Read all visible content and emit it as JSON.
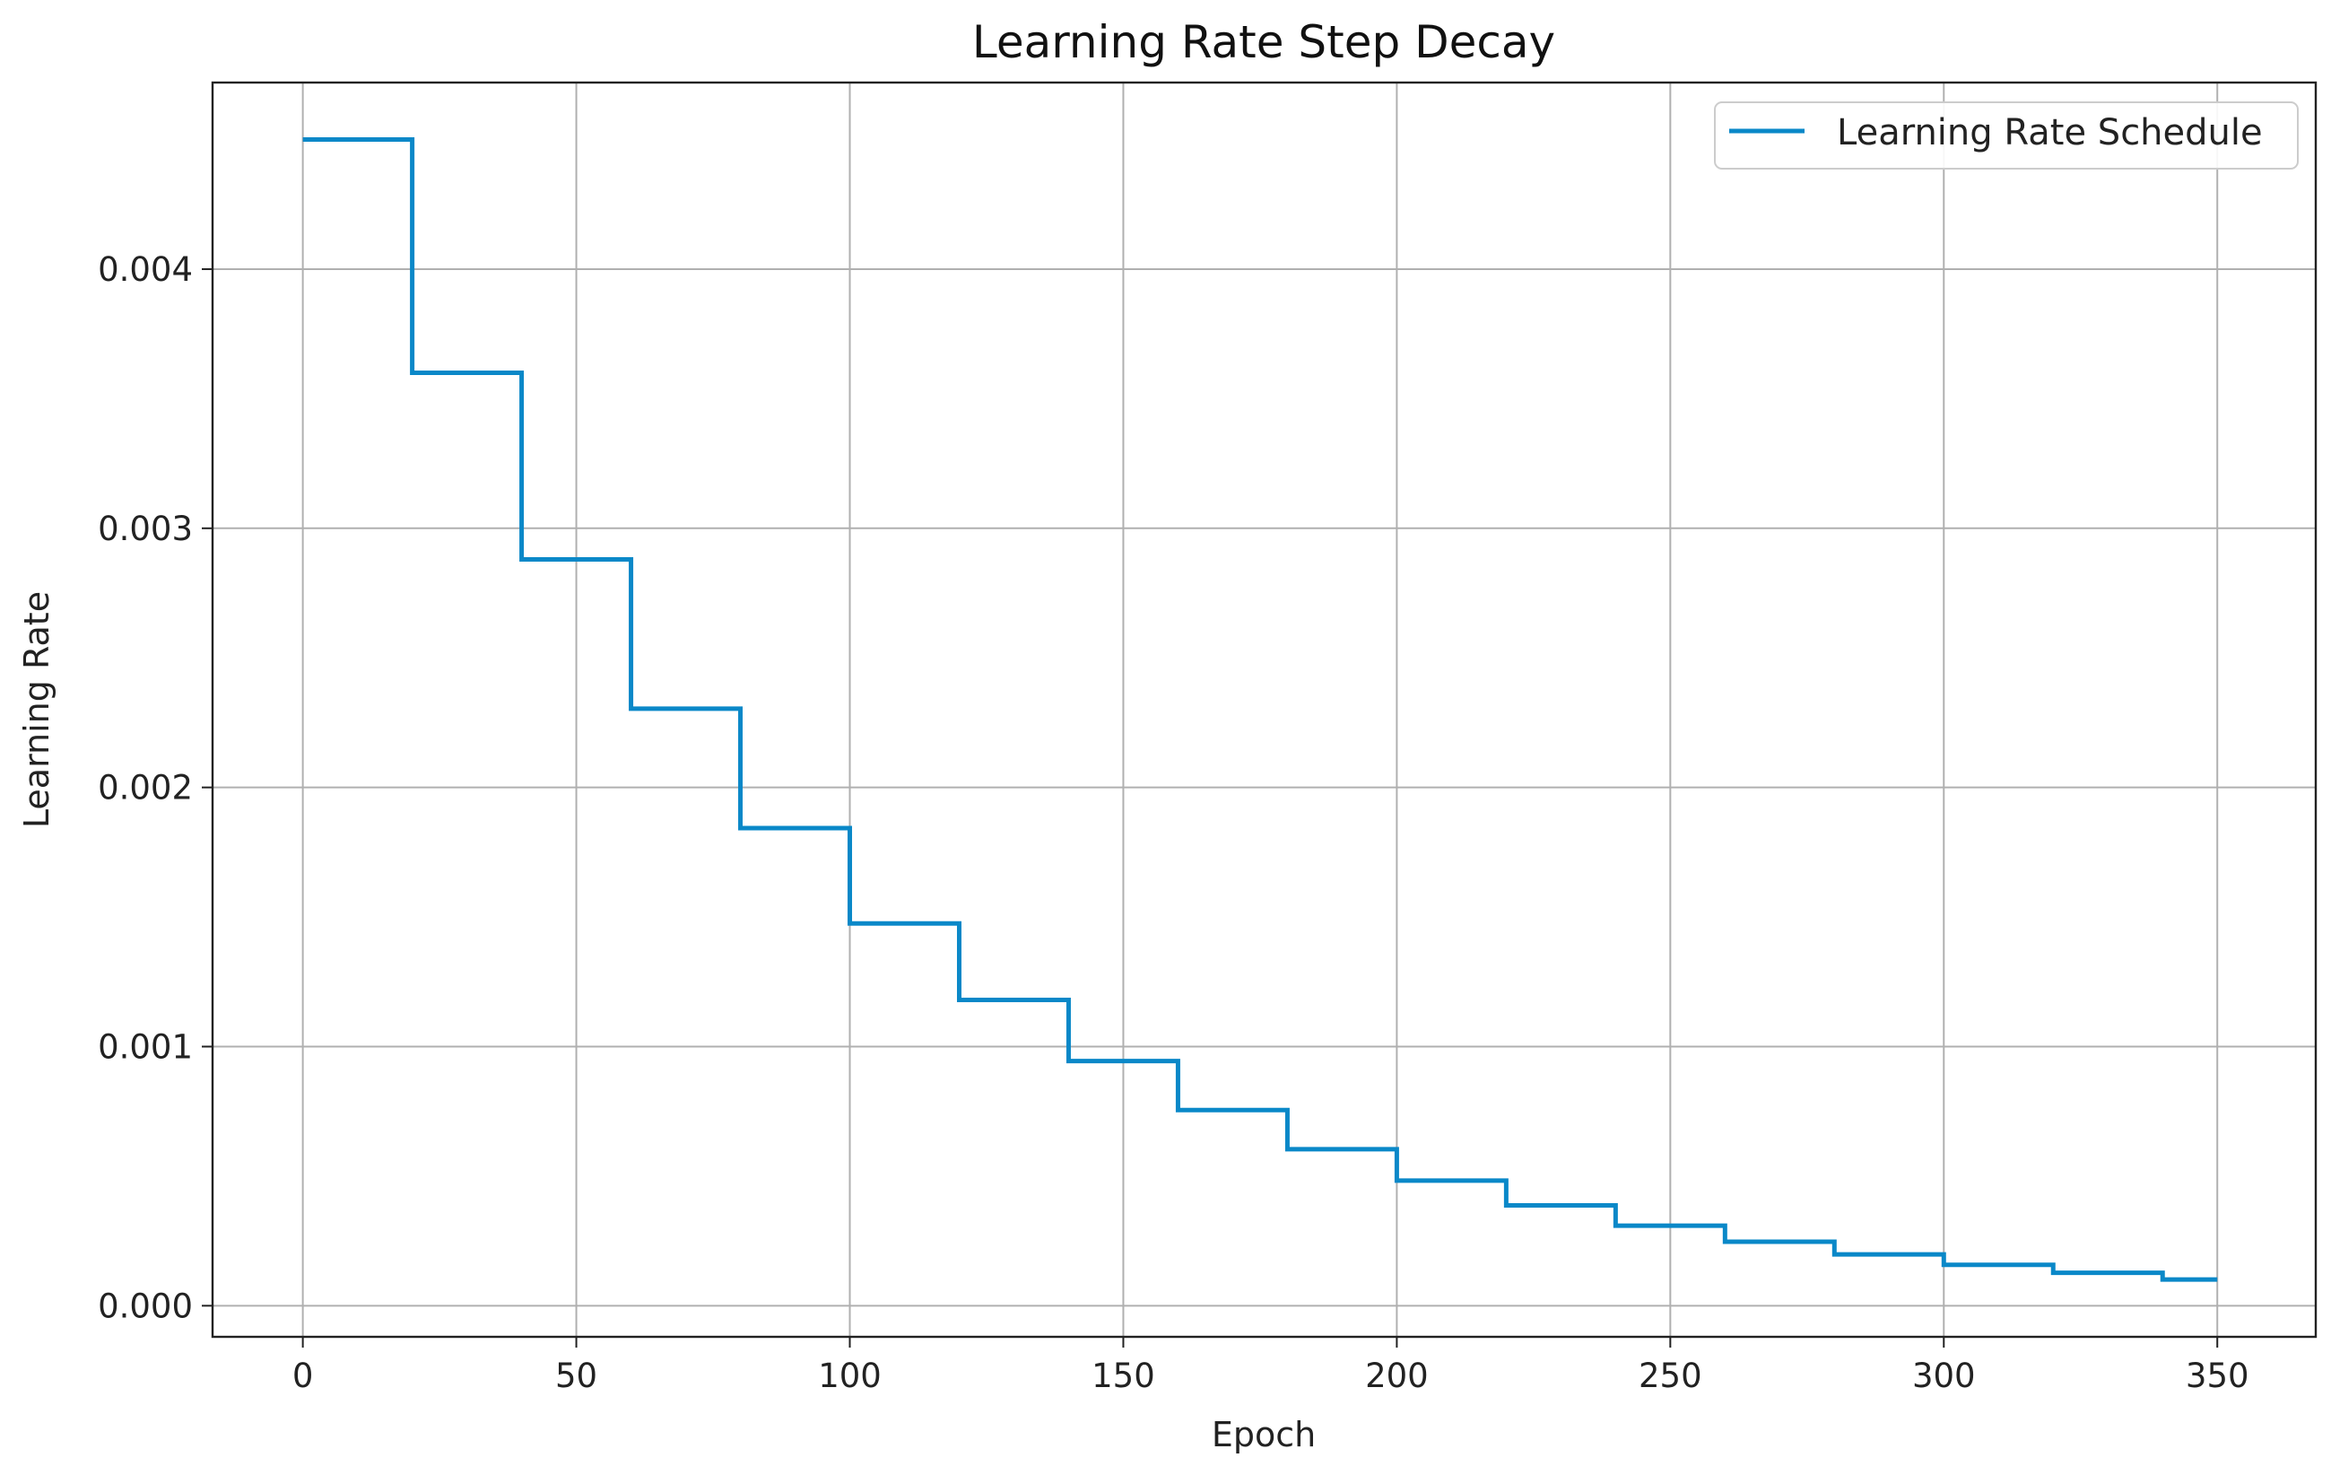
{
  "chart_data": {
    "type": "line",
    "title": "Learning Rate Step Decay",
    "xlabel": "Epoch",
    "ylabel": "Learning Rate",
    "xlim": [
      -16.5,
      368
    ],
    "ylim": [
      -0.00012,
      0.00472
    ],
    "x_ticks": [
      0,
      50,
      100,
      150,
      200,
      250,
      300,
      350
    ],
    "x_tick_labels": [
      "0",
      "50",
      "100",
      "150",
      "200",
      "250",
      "300",
      "350"
    ],
    "y_ticks": [
      0.0,
      0.001,
      0.002,
      0.003,
      0.004
    ],
    "y_tick_labels": [
      "0.000",
      "0.001",
      "0.002",
      "0.003",
      "0.004"
    ],
    "grid": true,
    "legend_position": "top-right",
    "series": [
      {
        "name": "Learning Rate Schedule",
        "color": "#0a88c8",
        "step": "post",
        "x": [
          0,
          20,
          40,
          60,
          80,
          100,
          120,
          140,
          160,
          180,
          200,
          220,
          240,
          260,
          280,
          300,
          320,
          340,
          350
        ],
        "y": [
          0.0045,
          0.0036,
          0.00288,
          0.002304,
          0.001843,
          0.001475,
          0.00118,
          0.000944,
          0.000755,
          0.000604,
          0.000483,
          0.000387,
          0.000309,
          0.000247,
          0.000198,
          0.000158,
          0.000127,
          0.000101,
          0.000101
        ]
      }
    ]
  }
}
